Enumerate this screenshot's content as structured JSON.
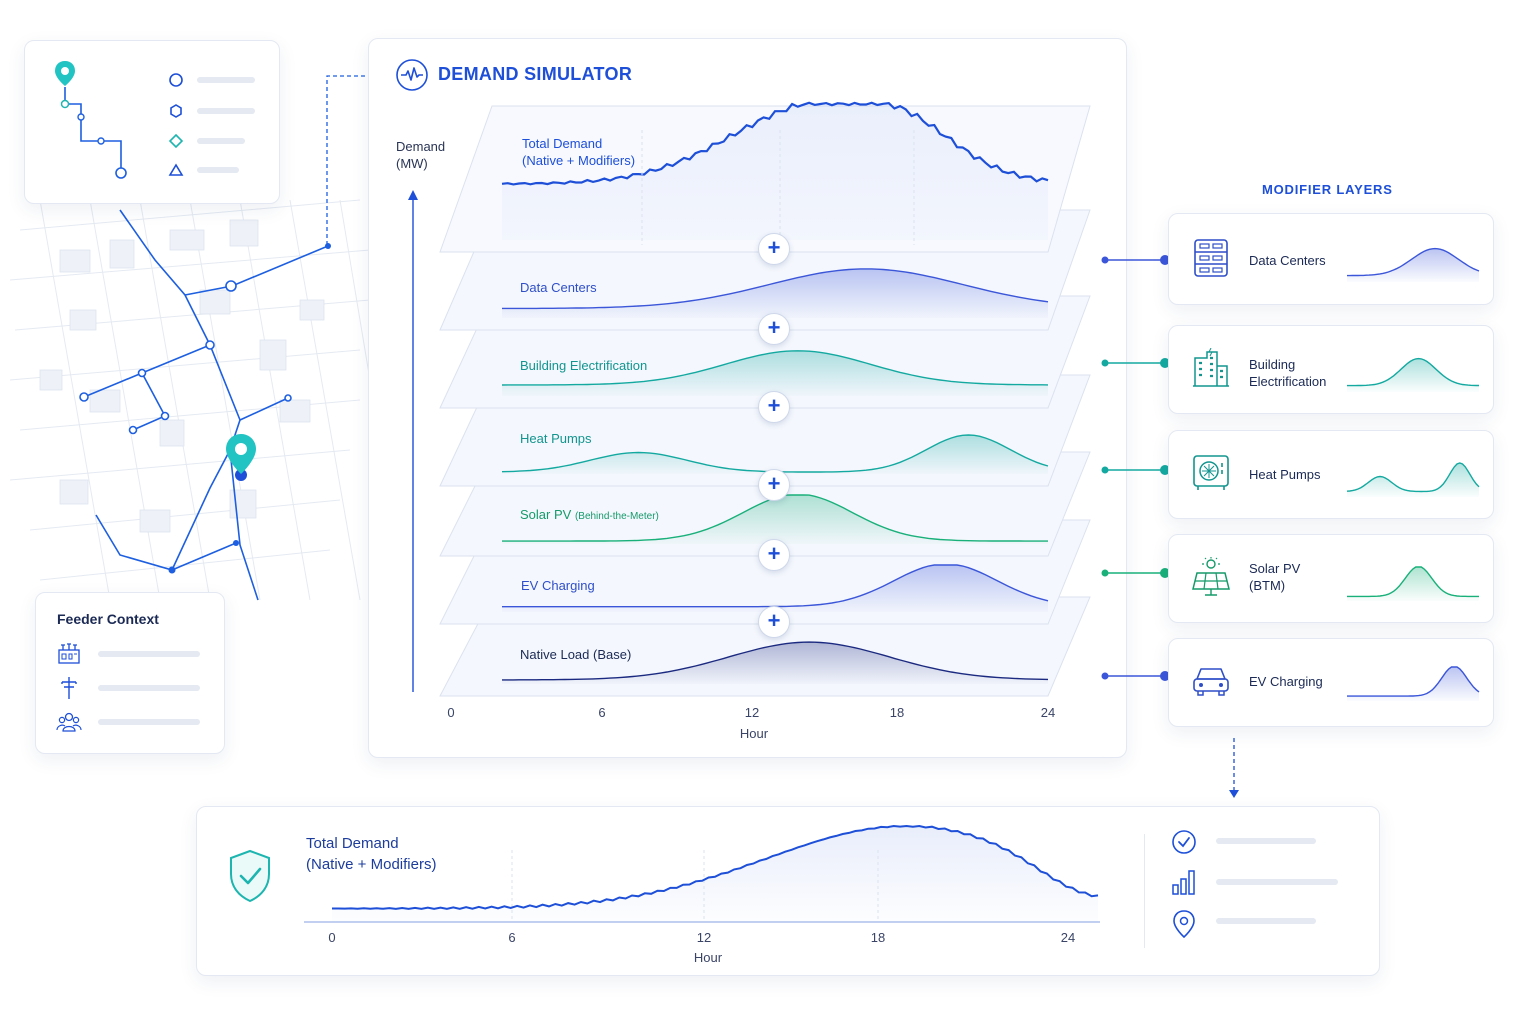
{
  "simulator": {
    "title": "DEMAND SIMULATOR",
    "y_axis_label_line1": "Demand",
    "y_axis_label_line2": "(MW)",
    "x_axis_title": "Hour",
    "x_ticks": [
      "0",
      "6",
      "12",
      "18",
      "24"
    ],
    "plus_symbol": "+",
    "layers": [
      {
        "label": "Total Demand",
        "label2": "(Native + Modifiers)",
        "color": "#1d4fd8"
      },
      {
        "label": "Data Centers",
        "color": "#3b56d9"
      },
      {
        "label": "Building Electrification",
        "color": "#14a9a0"
      },
      {
        "label": "Heat Pumps",
        "color": "#14a9a0"
      },
      {
        "label": "Solar PV",
        "label_small": "(Behind-the-Meter)",
        "color": "#19b07a"
      },
      {
        "label": "EV Charging",
        "color": "#3b56d9"
      },
      {
        "label": "Native Load (Base)",
        "color": "#1b2a80"
      }
    ]
  },
  "modifiers": {
    "header": "MODIFIER LAYERS",
    "items": [
      {
        "label": "Data Centers",
        "icon": "server-icon",
        "color": "#3b56d9"
      },
      {
        "label": "Building",
        "label2": "Electrification",
        "icon": "building-icon",
        "color": "#14a9a0"
      },
      {
        "label": "Heat Pumps",
        "icon": "heat-pump-icon",
        "color": "#14a9a0"
      },
      {
        "label": "Solar PV",
        "label2": "(BTM)",
        "icon": "solar-panel-icon",
        "color": "#19b07a"
      },
      {
        "label": "EV Charging",
        "icon": "car-icon",
        "color": "#3b56d9"
      }
    ]
  },
  "feeder": {
    "title": "Feeder Context",
    "icons": [
      "substation-icon",
      "utility-pole-icon",
      "customers-icon"
    ]
  },
  "legend_icons": [
    "circle-icon",
    "hexagon-icon",
    "diamond-icon",
    "triangle-icon"
  ],
  "bottom": {
    "title_line1": "Total Demand",
    "title_line2": "(Native + Modifiers)",
    "x_axis_title": "Hour",
    "x_ticks": [
      "0",
      "6",
      "12",
      "18",
      "24"
    ],
    "icons": [
      "check-circle-icon",
      "bar-chart-icon",
      "location-pin-icon"
    ]
  },
  "colors": {
    "primary_blue": "#1d4fd8",
    "teal": "#14a9a0",
    "green": "#19b07a",
    "navy": "#1b2a80"
  }
}
